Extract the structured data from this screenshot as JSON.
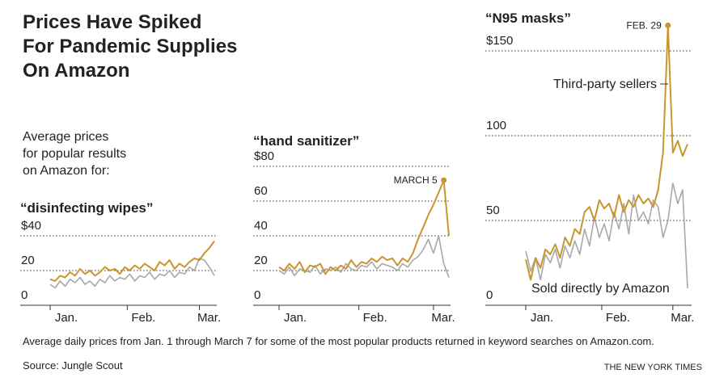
{
  "title_lines": [
    "Prices Have Spiked",
    "For Pandemic Supplies",
    "On Amazon"
  ],
  "intro_lines": [
    "Average prices",
    "for popular results",
    "on Amazon for:"
  ],
  "note": "Average daily prices from Jan. 1 through March 7 for some of the most popular products returned in keyword searches on Amazon.com.",
  "source": "Source: Jungle Scout",
  "credit": "THE NEW YORK TIMES",
  "chart_data": [
    {
      "type": "line",
      "title": "“disinfecting wipes”",
      "x_labels": [
        "Jan.",
        "Feb.",
        "Mar."
      ],
      "ylim": [
        0,
        40
      ],
      "yticks": [
        0,
        20,
        {
          "value": 40,
          "label": "$40"
        }
      ],
      "grid": true,
      "series": [
        {
          "name": "Sold directly by Amazon",
          "color": "#a8a8a8",
          "values": [
            12,
            10,
            14,
            11,
            15,
            13,
            16,
            12,
            14,
            11,
            15,
            13,
            17,
            14,
            16,
            15,
            18,
            14,
            17,
            16,
            19,
            15,
            18,
            17,
            20,
            16,
            19,
            18,
            22,
            20,
            27,
            26,
            22,
            17
          ]
        },
        {
          "name": "Third-party sellers",
          "color": "#c8952f",
          "values": [
            15,
            14,
            17,
            16,
            19,
            17,
            21,
            18,
            20,
            17,
            19,
            22,
            20,
            21,
            18,
            22,
            20,
            23,
            21,
            24,
            22,
            20,
            25,
            23,
            26,
            21,
            24,
            22,
            25,
            27,
            26,
            30,
            33,
            37
          ]
        }
      ]
    },
    {
      "type": "line",
      "title": "“hand sanitizer”",
      "x_labels": [
        "Jan.",
        "Feb.",
        "Mar."
      ],
      "ylim": [
        0,
        80
      ],
      "yticks": [
        0,
        20,
        40,
        60,
        {
          "value": 80,
          "label": "$80"
        }
      ],
      "grid": true,
      "annotation": {
        "text": "MARCH 5",
        "series": 1,
        "index": 32
      },
      "series": [
        {
          "name": "Sold directly by Amazon",
          "color": "#a8a8a8",
          "values": [
            20,
            18,
            22,
            17,
            21,
            20,
            19,
            23,
            18,
            21,
            20,
            22,
            19,
            24,
            21,
            20,
            23,
            22,
            25,
            21,
            24,
            23,
            22,
            20,
            24,
            22,
            26,
            28,
            32,
            38,
            30,
            40,
            24,
            16
          ]
        },
        {
          "name": "Third-party sellers",
          "color": "#c8952f",
          "values": [
            22,
            20,
            24,
            21,
            25,
            19,
            23,
            22,
            24,
            18,
            22,
            20,
            23,
            21,
            26,
            22,
            25,
            24,
            27,
            25,
            28,
            26,
            27,
            23,
            27,
            25,
            30,
            38,
            45,
            52,
            58,
            65,
            72,
            40
          ]
        }
      ]
    },
    {
      "type": "line",
      "title": "“N95 masks”",
      "x_labels": [
        "Jan.",
        "Feb.",
        "Mar."
      ],
      "ylim": [
        0,
        150
      ],
      "yticks": [
        0,
        50,
        100,
        {
          "value": 150,
          "label": "$150"
        }
      ],
      "grid": true,
      "annotation": {
        "text": "FEB. 29",
        "series": 1,
        "index": 29
      },
      "series": [
        {
          "name": "Sold directly by Amazon",
          "color": "#a8a8a8",
          "values": [
            32,
            20,
            28,
            15,
            30,
            25,
            33,
            22,
            35,
            28,
            38,
            30,
            45,
            35,
            52,
            40,
            48,
            38,
            55,
            45,
            60,
            42,
            65,
            50,
            55,
            48,
            62,
            58,
            40,
            50,
            72,
            60,
            68,
            10
          ]
        },
        {
          "name": "Third-party sellers",
          "color": "#c8952f",
          "values": [
            27,
            15,
            28,
            22,
            33,
            30,
            36,
            28,
            40,
            35,
            45,
            42,
            55,
            58,
            50,
            62,
            57,
            60,
            52,
            65,
            55,
            62,
            58,
            65,
            60,
            63,
            58,
            68,
            90,
            165,
            90,
            97,
            88,
            95
          ]
        }
      ]
    }
  ]
}
